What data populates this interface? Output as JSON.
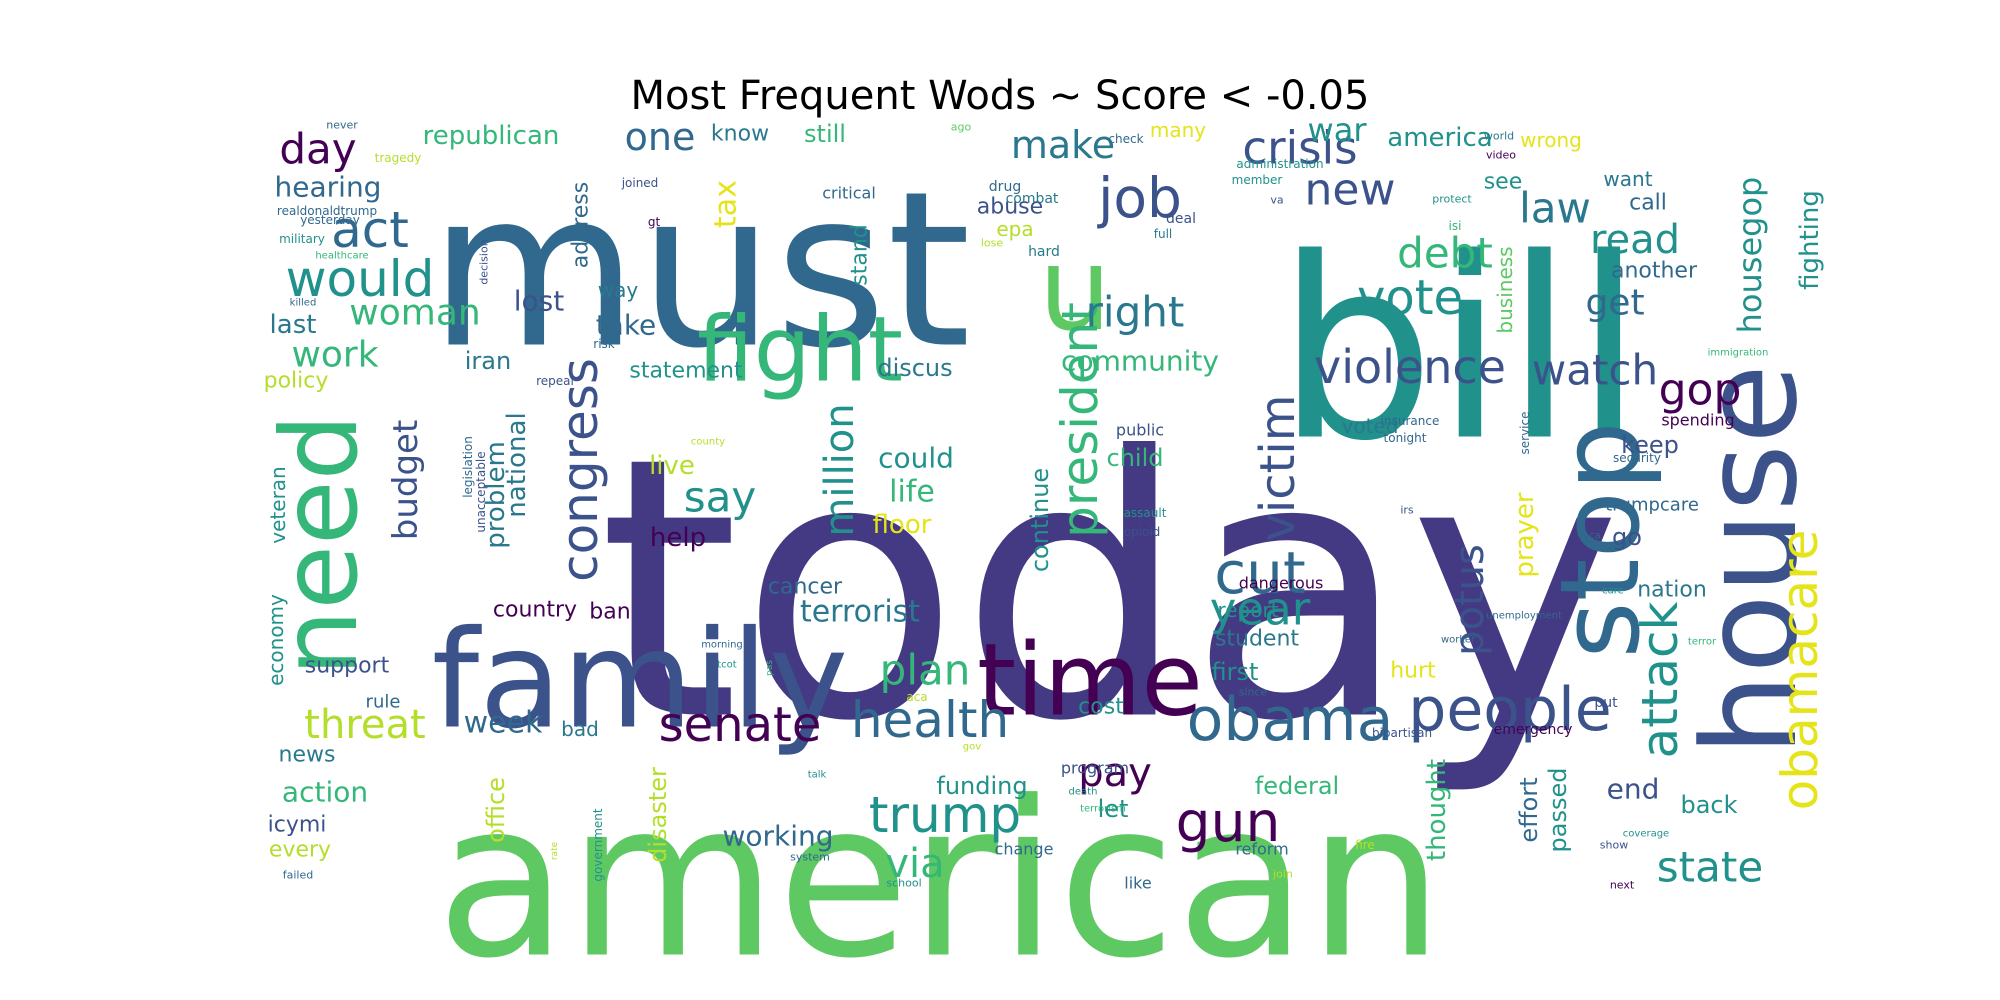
{
  "title": "Most Frequent Wods ~ Score < -0.05",
  "palette": {
    "purple": "#443983",
    "dark": "#440154",
    "indigo": "#3b528b",
    "blue": "#31688e",
    "teal": "#21918c",
    "sea": "#2a788e",
    "green": "#35b779",
    "lime": "#5ec962",
    "yellow": "#b5de2b",
    "gold": "#e5e419"
  },
  "words": [
    {
      "text": "today",
      "color": "purple"
    },
    {
      "text": "american",
      "color": "lime"
    },
    {
      "text": "bill",
      "color": "teal"
    },
    {
      "text": "must",
      "color": "blue"
    },
    {
      "text": "house",
      "color": "indigo"
    },
    {
      "text": "family",
      "color": "indigo"
    },
    {
      "text": "stop",
      "color": "blue"
    },
    {
      "text": "need",
      "color": "green"
    },
    {
      "text": "time",
      "color": "dark"
    },
    {
      "text": "fight",
      "color": "green"
    },
    {
      "text": "u",
      "color": "lime"
    },
    {
      "text": "obamacare",
      "color": "gold"
    },
    {
      "text": "people",
      "color": "indigo"
    },
    {
      "text": "obama",
      "color": "blue"
    },
    {
      "text": "congress",
      "color": "indigo"
    },
    {
      "text": "president",
      "color": "green"
    },
    {
      "text": "attack",
      "color": "teal"
    },
    {
      "text": "senate",
      "color": "dark"
    },
    {
      "text": "gun",
      "color": "dark"
    },
    {
      "text": "health",
      "color": "blue"
    },
    {
      "text": "trump",
      "color": "teal"
    },
    {
      "text": "job",
      "color": "indigo"
    },
    {
      "text": "cut",
      "color": "blue"
    },
    {
      "text": "violence",
      "color": "indigo"
    },
    {
      "text": "victim",
      "color": "indigo"
    },
    {
      "text": "crisis",
      "color": "indigo"
    },
    {
      "text": "year",
      "color": "teal"
    },
    {
      "text": "vote",
      "color": "teal"
    },
    {
      "text": "would",
      "color": "teal"
    },
    {
      "text": "act",
      "color": "blue"
    },
    {
      "text": "million",
      "color": "teal"
    },
    {
      "text": "watch",
      "color": "indigo"
    },
    {
      "text": "gop",
      "color": "dark"
    },
    {
      "text": "state",
      "color": "teal"
    },
    {
      "text": "right",
      "color": "sea"
    },
    {
      "text": "new",
      "color": "indigo"
    },
    {
      "text": "say",
      "color": "teal"
    },
    {
      "text": "plan",
      "color": "green"
    },
    {
      "text": "debt",
      "color": "green"
    },
    {
      "text": "potus",
      "color": "indigo"
    },
    {
      "text": "law",
      "color": "sea"
    },
    {
      "text": "read",
      "color": "teal"
    },
    {
      "text": "pay",
      "color": "dark"
    },
    {
      "text": "threat",
      "color": "yellow"
    },
    {
      "text": "via",
      "color": "green"
    },
    {
      "text": "make",
      "color": "sea"
    },
    {
      "text": "one",
      "color": "blue"
    },
    {
      "text": "woman",
      "color": "green"
    },
    {
      "text": "work",
      "color": "green"
    },
    {
      "text": "day",
      "color": "dark"
    },
    {
      "text": "budget",
      "color": "indigo"
    },
    {
      "text": "housegop",
      "color": "teal"
    },
    {
      "text": "get",
      "color": "blue"
    },
    {
      "text": "terrorist",
      "color": "sea"
    },
    {
      "text": "war",
      "color": "teal"
    },
    {
      "text": "tax",
      "color": "gold"
    },
    {
      "text": "life",
      "color": "green"
    },
    {
      "text": "could",
      "color": "teal"
    },
    {
      "text": "community",
      "color": "green"
    },
    {
      "text": "fighting",
      "color": "teal"
    },
    {
      "text": "prayer",
      "color": "gold"
    },
    {
      "text": "week",
      "color": "blue"
    },
    {
      "text": "hearing",
      "color": "blue"
    },
    {
      "text": "lost",
      "color": "indigo"
    },
    {
      "text": "take",
      "color": "blue"
    },
    {
      "text": "working",
      "color": "blue"
    },
    {
      "text": "live",
      "color": "yellow"
    },
    {
      "text": "help",
      "color": "dark"
    },
    {
      "text": "floor",
      "color": "gold"
    },
    {
      "text": "continue",
      "color": "teal"
    },
    {
      "text": "thought",
      "color": "green"
    },
    {
      "text": "action",
      "color": "green"
    },
    {
      "text": "national",
      "color": "sea"
    },
    {
      "text": "problem",
      "color": "sea"
    },
    {
      "text": "funding",
      "color": "teal"
    },
    {
      "text": "federal",
      "color": "green"
    },
    {
      "text": "effort",
      "color": "blue"
    },
    {
      "text": "passed",
      "color": "teal"
    },
    {
      "text": "end",
      "color": "indigo"
    },
    {
      "text": "back",
      "color": "teal"
    },
    {
      "text": "office",
      "color": "yellow"
    },
    {
      "text": "disaster",
      "color": "yellow"
    },
    {
      "text": "last",
      "color": "sea"
    },
    {
      "text": "policy",
      "color": "yellow"
    },
    {
      "text": "iran",
      "color": "sea"
    },
    {
      "text": "statement",
      "color": "teal"
    },
    {
      "text": "discus",
      "color": "sea"
    },
    {
      "text": "child",
      "color": "green"
    },
    {
      "text": "keep",
      "color": "indigo"
    },
    {
      "text": "go",
      "color": "indigo"
    },
    {
      "text": "nation",
      "color": "sea"
    },
    {
      "text": "let",
      "color": "teal"
    },
    {
      "text": "cost",
      "color": "teal"
    },
    {
      "text": "hurt",
      "color": "gold"
    },
    {
      "text": "first",
      "color": "teal"
    },
    {
      "text": "student",
      "color": "sea"
    },
    {
      "text": "cancer",
      "color": "blue"
    },
    {
      "text": "country",
      "color": "dark"
    },
    {
      "text": "ban",
      "color": "dark"
    },
    {
      "text": "support",
      "color": "indigo"
    },
    {
      "text": "bad",
      "color": "sea"
    },
    {
      "text": "news",
      "color": "sea"
    },
    {
      "text": "icymi",
      "color": "indigo"
    },
    {
      "text": "every",
      "color": "yellow"
    },
    {
      "text": "republican",
      "color": "green"
    },
    {
      "text": "know",
      "color": "sea"
    },
    {
      "text": "still",
      "color": "green"
    },
    {
      "text": "many",
      "color": "gold"
    },
    {
      "text": "america",
      "color": "teal"
    },
    {
      "text": "wrong",
      "color": "gold"
    },
    {
      "text": "see",
      "color": "teal"
    },
    {
      "text": "want",
      "color": "sea"
    },
    {
      "text": "call",
      "color": "blue"
    },
    {
      "text": "another",
      "color": "blue"
    },
    {
      "text": "abuse",
      "color": "indigo"
    },
    {
      "text": "epa",
      "color": "yellow"
    },
    {
      "text": "stand",
      "color": "teal"
    },
    {
      "text": "way",
      "color": "sea"
    },
    {
      "text": "address",
      "color": "blue"
    },
    {
      "text": "business",
      "color": "lime"
    },
    {
      "text": "veteran",
      "color": "teal"
    },
    {
      "text": "economy",
      "color": "teal"
    },
    {
      "text": "rule",
      "color": "blue"
    },
    {
      "text": "report",
      "color": "teal"
    },
    {
      "text": "trumpcare",
      "color": "blue"
    },
    {
      "text": "voted",
      "color": "sea"
    },
    {
      "text": "spending",
      "color": "dark"
    },
    {
      "text": "program",
      "color": "indigo"
    },
    {
      "text": "reform",
      "color": "blue"
    },
    {
      "text": "change",
      "color": "blue"
    },
    {
      "text": "like",
      "color": "blue"
    },
    {
      "text": "dangerous",
      "color": "dark"
    },
    {
      "text": "public",
      "color": "indigo"
    },
    {
      "text": "critical",
      "color": "blue"
    },
    {
      "text": "combat",
      "color": "sea"
    },
    {
      "text": "drug",
      "color": "blue"
    },
    {
      "text": "deal",
      "color": "indigo"
    },
    {
      "text": "hard",
      "color": "sea"
    },
    {
      "text": "full",
      "color": "sea"
    },
    {
      "text": "never",
      "color": "blue"
    },
    {
      "text": "tragedy",
      "color": "yellow"
    },
    {
      "text": "realdonaldtrump",
      "color": "blue"
    },
    {
      "text": "yesterday",
      "color": "blue"
    },
    {
      "text": "military",
      "color": "teal"
    },
    {
      "text": "decision",
      "color": "indigo"
    },
    {
      "text": "killed",
      "color": "blue"
    },
    {
      "text": "repeal",
      "color": "indigo"
    },
    {
      "text": "risk",
      "color": "blue"
    },
    {
      "text": "legislation",
      "color": "blue"
    },
    {
      "text": "unacceptable",
      "color": "indigo"
    },
    {
      "text": "joined",
      "color": "indigo"
    },
    {
      "text": "gt",
      "color": "dark"
    },
    {
      "text": "healthcare",
      "color": "green"
    },
    {
      "text": "ago",
      "color": "lime"
    },
    {
      "text": "check",
      "color": "blue"
    },
    {
      "text": "world",
      "color": "sea"
    },
    {
      "text": "video",
      "color": "dark"
    },
    {
      "text": "administration",
      "color": "teal"
    },
    {
      "text": "member",
      "color": "teal"
    },
    {
      "text": "va",
      "color": "indigo"
    },
    {
      "text": "protect",
      "color": "teal"
    },
    {
      "text": "isi",
      "color": "green"
    },
    {
      "text": "issue",
      "color": "blue"
    },
    {
      "text": "lose",
      "color": "yellow"
    },
    {
      "text": "immigration",
      "color": "green"
    },
    {
      "text": "insurance",
      "color": "blue"
    },
    {
      "text": "tonight",
      "color": "blue"
    },
    {
      "text": "service",
      "color": "blue"
    },
    {
      "text": "security",
      "color": "blue"
    },
    {
      "text": "irs",
      "color": "indigo"
    },
    {
      "text": "assault",
      "color": "teal"
    },
    {
      "text": "opioid",
      "color": "indigo"
    },
    {
      "text": "ca",
      "color": "blue"
    },
    {
      "text": "care",
      "color": "teal"
    },
    {
      "text": "county",
      "color": "yellow"
    },
    {
      "text": "unemployment",
      "color": "blue"
    },
    {
      "text": "worker",
      "color": "blue"
    },
    {
      "text": "terror",
      "color": "green"
    },
    {
      "text": "morning",
      "color": "blue"
    },
    {
      "text": "tcot",
      "color": "teal"
    },
    {
      "text": "pas",
      "color": "green"
    },
    {
      "text": "aca",
      "color": "yellow"
    },
    {
      "text": "since",
      "color": "blue"
    },
    {
      "text": "put",
      "color": "indigo"
    },
    {
      "text": "bipartisan",
      "color": "indigo"
    },
    {
      "text": "emergency",
      "color": "dark"
    },
    {
      "text": "coverage",
      "color": "teal"
    },
    {
      "text": "gov",
      "color": "yellow"
    },
    {
      "text": "talk",
      "color": "teal"
    },
    {
      "text": "death",
      "color": "teal"
    },
    {
      "text": "terrorism",
      "color": "green"
    },
    {
      "text": "rate",
      "color": "yellow"
    },
    {
      "text": "government",
      "color": "teal"
    },
    {
      "text": "system",
      "color": "blue"
    },
    {
      "text": "fire",
      "color": "yellow"
    },
    {
      "text": "join",
      "color": "yellow"
    },
    {
      "text": "show",
      "color": "indigo"
    },
    {
      "text": "next",
      "color": "dark"
    },
    {
      "text": "school",
      "color": "teal"
    },
    {
      "text": "failed",
      "color": "blue"
    }
  ]
}
